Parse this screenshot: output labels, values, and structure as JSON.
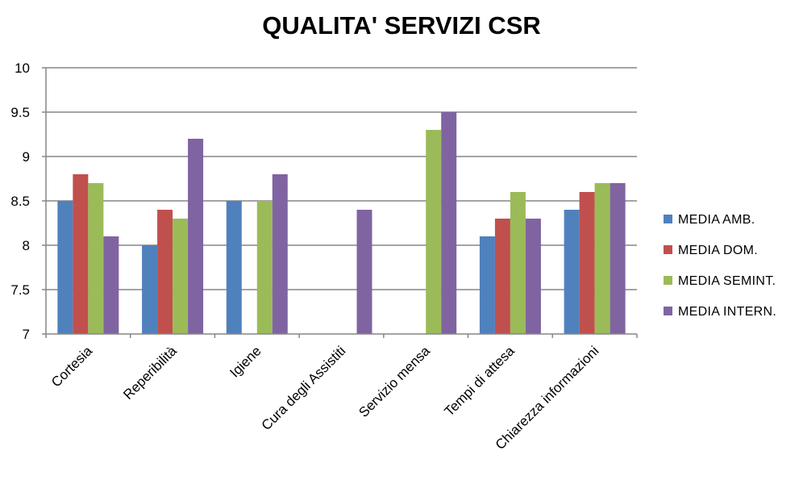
{
  "chart_data": {
    "type": "bar",
    "title": "QUALITA' SERVIZI CSR",
    "xlabel": "",
    "ylabel": "",
    "ylim": [
      7,
      10
    ],
    "yticks": [
      "7",
      "7.5",
      "8",
      "8.5",
      "9",
      "9.5",
      "10"
    ],
    "ytick_values": [
      7,
      7.5,
      8,
      8.5,
      9,
      9.5,
      10
    ],
    "grid": true,
    "legend_position": "right",
    "categories": [
      "Cortesia",
      "Reperibilità",
      "Igiene",
      "Cura degli Assistiti",
      "Servizio mensa",
      "Tempi di attesa",
      "Chiarezza informazioni"
    ],
    "series": [
      {
        "name": "MEDIA AMB.",
        "color": "#4F81BD",
        "values": [
          8.5,
          8.0,
          8.5,
          null,
          null,
          8.1,
          8.4
        ]
      },
      {
        "name": "MEDIA DOM.",
        "color": "#C0504D",
        "values": [
          8.8,
          8.4,
          null,
          null,
          null,
          8.3,
          8.6
        ]
      },
      {
        "name": "MEDIA SEMINT.",
        "color": "#9BBB59",
        "values": [
          8.7,
          8.3,
          8.5,
          null,
          9.3,
          8.6,
          8.7
        ]
      },
      {
        "name": "MEDIA INTERN.",
        "color": "#8064A2",
        "values": [
          8.1,
          9.2,
          8.8,
          8.4,
          9.5,
          8.3,
          8.7
        ]
      }
    ]
  }
}
